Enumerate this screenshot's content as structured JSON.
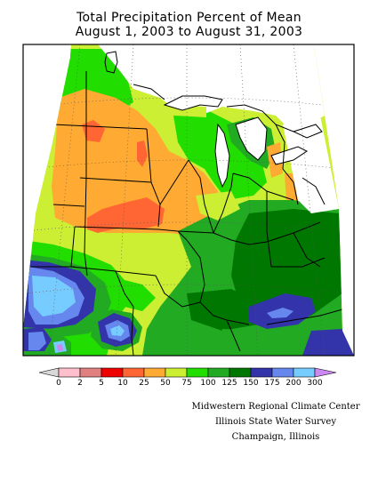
{
  "title": {
    "line1": "Total Precipitation Percent of Mean",
    "line2": "August 1, 2003 to August 31, 2003"
  },
  "legend": {
    "labels": [
      "0",
      "2",
      "5",
      "10",
      "25",
      "50",
      "75",
      "100",
      "125",
      "150",
      "175",
      "200",
      "300"
    ],
    "colors": {
      "lt0": "#d8d8d8",
      "b0_2": "#ffbfcc",
      "b2_5": "#e08080",
      "b5_10": "#ee0000",
      "b10_25": "#ff6633",
      "b25_50": "#ffaa33",
      "b50_75": "#ccee33",
      "b75_100": "#22dd00",
      "b100_125": "#22aa22",
      "b125_150": "#007700",
      "b150_175": "#3333aa",
      "b175_200": "#6688ee",
      "b200_300": "#77ccff",
      "gt300": "#cc88ee"
    }
  },
  "credits": {
    "line1": "Midwestern Regional Climate Center",
    "line2": "Illinois State Water Survey",
    "line3": "Champaign, Illinois"
  }
}
